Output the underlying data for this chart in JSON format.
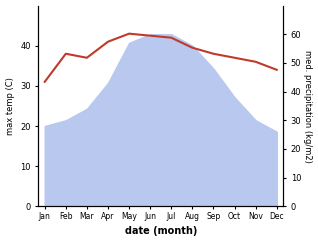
{
  "months": [
    "Jan",
    "Feb",
    "Mar",
    "Apr",
    "May",
    "Jun",
    "Jul",
    "Aug",
    "Sep",
    "Oct",
    "Nov",
    "Dec"
  ],
  "temp": [
    31,
    38,
    37,
    41,
    43,
    42.5,
    42,
    39.5,
    38,
    37,
    36,
    34
  ],
  "precip": [
    28,
    30,
    34,
    43,
    57,
    60,
    60,
    56,
    48,
    38,
    30,
    26
  ],
  "temp_color": "#c0392b",
  "precip_color": "#b8c8ee",
  "left_ylim": [
    0,
    50
  ],
  "right_ylim": [
    0,
    70
  ],
  "left_yticks": [
    0,
    10,
    20,
    30,
    40
  ],
  "right_yticks": [
    0,
    10,
    20,
    30,
    40,
    50,
    60
  ],
  "xlabel": "date (month)",
  "ylabel_left": "max temp (C)",
  "ylabel_right": "med. precipitation (kg/m2)",
  "figsize": [
    3.18,
    2.42
  ],
  "dpi": 100
}
